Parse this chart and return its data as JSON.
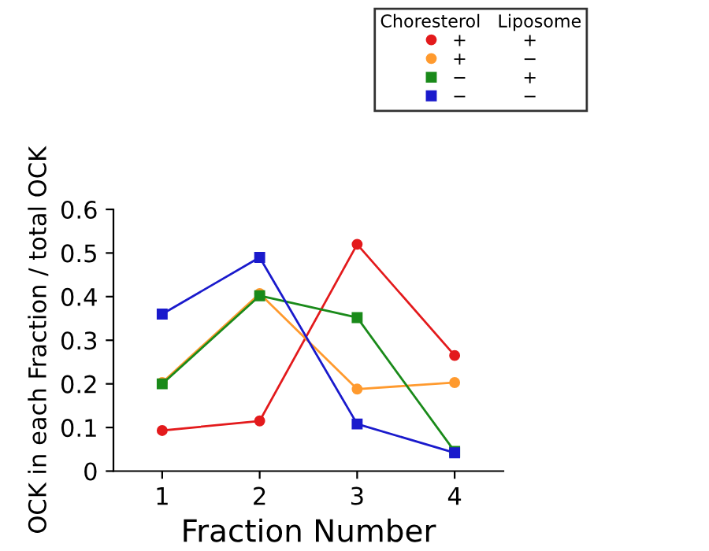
{
  "chart_data": {
    "type": "line",
    "xlabel": "Fraction Number",
    "ylabel": "OCK in each Fraction / total OCK",
    "x": [
      1,
      2,
      3,
      4
    ],
    "xlim": [
      0.5,
      4.5
    ],
    "xticks": [
      1,
      2,
      3,
      4
    ],
    "ylim": [
      0,
      0.6
    ],
    "yticks": [
      0,
      0.1,
      0.2,
      0.3,
      0.4,
      0.5,
      0.6
    ],
    "grid": false,
    "legend": "top right",
    "legend_title": "Choresterol   Liposome",
    "series": [
      {
        "name": "+          +",
        "color": "#e31a1c",
        "marker": "circle",
        "values": [
          0.093,
          0.115,
          0.52,
          0.265
        ]
      },
      {
        "name": "+          −",
        "color": "#ff9a2e",
        "marker": "circle",
        "values": [
          0.203,
          0.407,
          0.188,
          0.203
        ]
      },
      {
        "name": "−          +",
        "color": "#1a8a1a",
        "marker": "square",
        "values": [
          0.2,
          0.402,
          0.352,
          0.045
        ]
      },
      {
        "name": "−          −",
        "color": "#1a1acc",
        "marker": "square",
        "values": [
          0.36,
          0.49,
          0.108,
          0.042
        ]
      }
    ]
  }
}
